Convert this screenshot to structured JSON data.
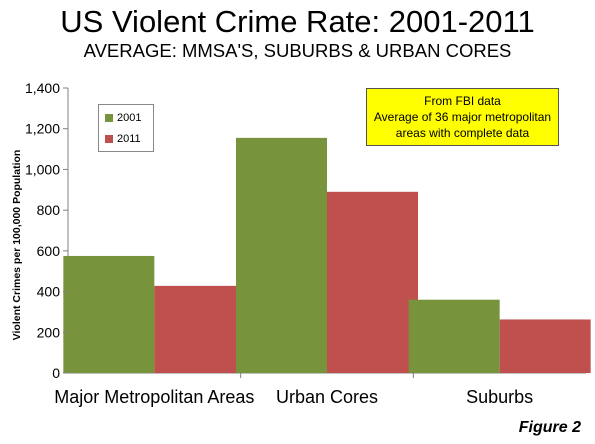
{
  "title": "US Violent Crime Rate: 2001-2011",
  "subtitle": "AVERAGE: MMSA'S, SUBURBS & URBAN CORES",
  "annotation": {
    "lines": [
      "From FBI data",
      "Average of 36 major metropolitan",
      "areas with complete data"
    ]
  },
  "figure_label": "Figure 2",
  "colors": {
    "2001": "#77933c",
    "2011": "#c0504d",
    "axis": "#808080",
    "grid": "#b0b0b0"
  },
  "chart_data": {
    "type": "bar",
    "title": "US Violent Crime Rate: 2001-2011",
    "subtitle": "AVERAGE: MMSA'S, SUBURBS & URBAN CORES",
    "xlabel": "",
    "ylabel": "Violent Crimes per 100,000 Population",
    "categories": [
      "Major Metropolitan Areas",
      "Urban Cores",
      "Suburbs"
    ],
    "series": [
      {
        "name": "2001",
        "values": [
          575,
          1155,
          360
        ]
      },
      {
        "name": "2011",
        "values": [
          428,
          890,
          263
        ]
      }
    ],
    "ylim": [
      0,
      1400
    ],
    "yticks": [
      0,
      200,
      400,
      600,
      800,
      1000,
      1200,
      1400
    ],
    "ytick_labels": [
      "0",
      "200",
      "400",
      "600",
      "800",
      "1,000",
      "1,200",
      "1,400"
    ],
    "grid": false,
    "legend_position": "top-left"
  }
}
